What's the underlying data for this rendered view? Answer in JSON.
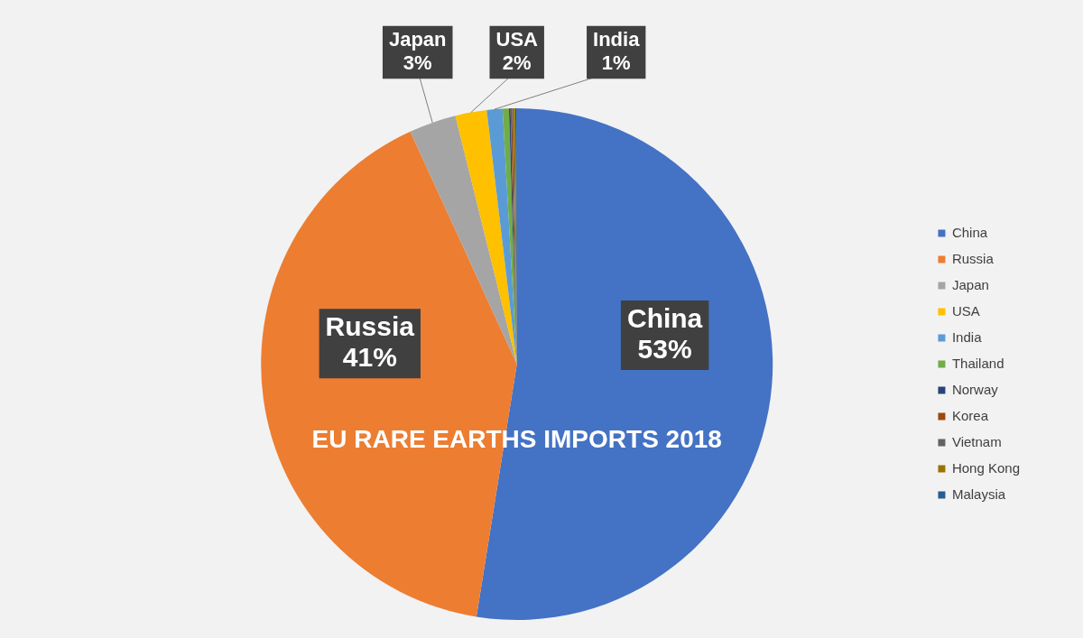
{
  "chart_data": {
    "type": "pie",
    "title": "EU RARE EARTHS IMPORTS 2018",
    "categories": [
      "China",
      "Russia",
      "Japan",
      "USA",
      "India",
      "Thailand",
      "Norway",
      "Korea",
      "Vietnam",
      "Hong Kong",
      "Malaysia"
    ],
    "values": [
      53,
      41,
      3,
      2,
      1,
      0.4,
      0.1,
      0.1,
      0.1,
      0.1,
      0.1
    ],
    "colors": [
      "#4472c4",
      "#ed7d31",
      "#a5a5a5",
      "#ffc000",
      "#5b9bd5",
      "#70ad47",
      "#264478",
      "#9e480e",
      "#636363",
      "#997300",
      "#255e91"
    ],
    "value_labels": [
      "53%",
      "41%",
      "3%",
      "2%",
      "1%",
      null,
      null,
      null,
      null,
      null,
      null
    ],
    "legend": "right"
  }
}
